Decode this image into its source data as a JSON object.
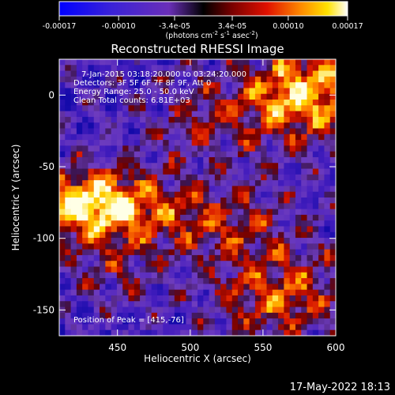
{
  "chart_data": {
    "type": "heatmap",
    "title": "Reconstructed RHESSI Image",
    "xlabel": "Heliocentric X (arcsec)",
    "ylabel": "Heliocentric Y (arcsec)",
    "xlim": [
      410,
      600
    ],
    "ylim": [
      -168,
      25
    ],
    "x_ticks": [
      450,
      500,
      550,
      600
    ],
    "y_ticks": [
      0,
      -50,
      -100,
      -150
    ],
    "colorbar": {
      "label_prefix": "(photons cm",
      "label_exp1": "-2",
      "label_mid": " s",
      "label_exp2": "-1",
      "label_mid2": " asec",
      "label_exp3": "-2",
      "label_suffix": ")",
      "range": [
        -0.00017,
        0.00017
      ],
      "ticks": [
        {
          "value": -0.00017,
          "label": "-0.00017"
        },
        {
          "value": -0.0001,
          "label": "-0.00010"
        },
        {
          "value": -3.4e-05,
          "label": "-3.4e-05"
        },
        {
          "value": 3.4e-05,
          "label": "3.4e-05"
        },
        {
          "value": 0.0001,
          "label": "0.00010"
        },
        {
          "value": 0.00017,
          "label": "0.00017"
        }
      ]
    },
    "annotations": {
      "time_range": "7-Jan-2015 03:18:20.000 to 03:24:20.000",
      "detectors": "Detectors: 3F 5F 6F 7F 8F 9F, Att 0",
      "energy": "Energy Range: 25.0 - 50.0 keV",
      "clean": "Clean     Total counts: 6.81E+03",
      "peak": "Position of Peak = [415,-76]"
    },
    "peak_position": [
      415,
      -76
    ],
    "grid": false,
    "colormap": "rainbow-to-hot (blue-purple negative, red-yellow-white positive)"
  },
  "footer": {
    "date_stamp": "17-May-2022 18:13"
  },
  "colors": {
    "background": "#000000",
    "text": "#ffffff"
  }
}
